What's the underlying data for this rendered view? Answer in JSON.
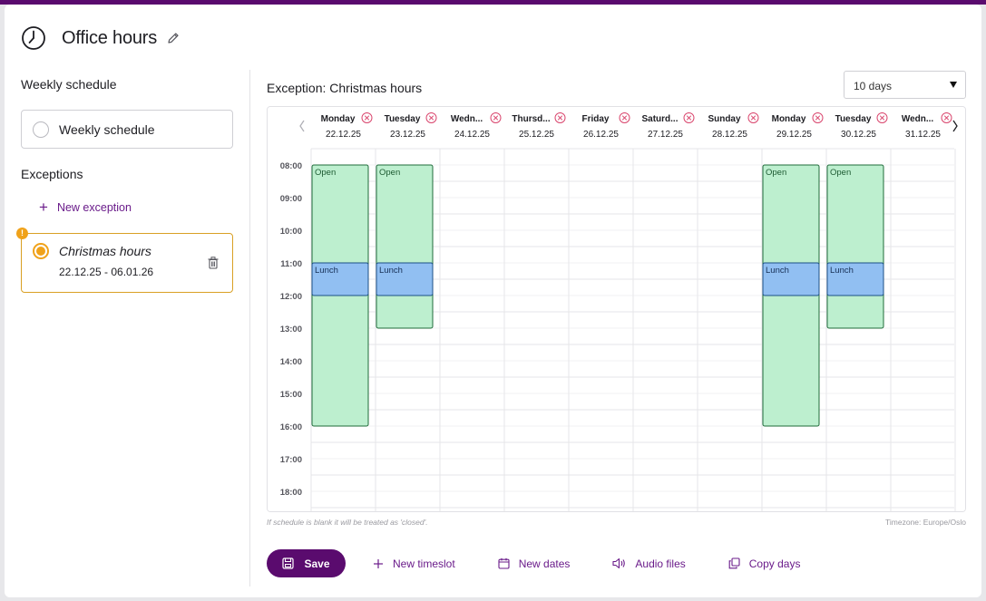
{
  "header": {
    "title": "Office hours"
  },
  "weekly": {
    "section_title": "Weekly schedule",
    "option_label": "Weekly schedule"
  },
  "exceptions": {
    "section_title": "Exceptions",
    "new_label": "New exception",
    "items": [
      {
        "name": "Christmas hours",
        "dates": "22.12.25 - 06.01.26",
        "warning": "!"
      }
    ]
  },
  "main": {
    "heading": "Exception: Christmas hours",
    "range_select": {
      "value": "10 days"
    },
    "footnote": "If schedule is blank it will be treated as 'closed'.",
    "timezone": "Timezone: Europe/Oslo"
  },
  "calendar": {
    "days": [
      {
        "name": "Monday",
        "date": "22.12.25"
      },
      {
        "name": "Tuesday",
        "date": "23.12.25"
      },
      {
        "name": "Wedn...",
        "date": "24.12.25"
      },
      {
        "name": "Thursd...",
        "date": "25.12.25"
      },
      {
        "name": "Friday",
        "date": "26.12.25"
      },
      {
        "name": "Saturd...",
        "date": "27.12.25"
      },
      {
        "name": "Sunday",
        "date": "28.12.25"
      },
      {
        "name": "Monday",
        "date": "29.12.25"
      },
      {
        "name": "Tuesday",
        "date": "30.12.25"
      },
      {
        "name": "Wedn...",
        "date": "31.12.25"
      }
    ],
    "hours": [
      "08:00",
      "09:00",
      "10:00",
      "11:00",
      "12:00",
      "13:00",
      "14:00",
      "15:00",
      "16:00",
      "17:00",
      "18:00"
    ],
    "events": [
      {
        "day": 0,
        "label": "Open",
        "start": 8,
        "end": 16,
        "kind": "open"
      },
      {
        "day": 0,
        "label": "Lunch",
        "start": 11,
        "end": 12,
        "kind": "lunch"
      },
      {
        "day": 1,
        "label": "Open",
        "start": 8,
        "end": 13,
        "kind": "open"
      },
      {
        "day": 1,
        "label": "Lunch",
        "start": 11,
        "end": 12,
        "kind": "lunch"
      },
      {
        "day": 7,
        "label": "Open",
        "start": 8,
        "end": 16,
        "kind": "open"
      },
      {
        "day": 7,
        "label": "Lunch",
        "start": 11,
        "end": 12,
        "kind": "lunch"
      },
      {
        "day": 8,
        "label": "Open",
        "start": 8,
        "end": 13,
        "kind": "open"
      },
      {
        "day": 8,
        "label": "Lunch",
        "start": 11,
        "end": 12,
        "kind": "lunch"
      }
    ]
  },
  "actions": {
    "save": "Save",
    "new_timeslot": "New timeslot",
    "new_dates": "New dates",
    "audio_files": "Audio files",
    "copy_days": "Copy days"
  },
  "colors": {
    "brand": "#5a0b6e",
    "link": "#6a1b8a",
    "warning": "#f0a21a",
    "open_fill": "#bdefcf",
    "open_stroke": "#1f6b3a",
    "lunch_fill": "#91bff2",
    "lunch_stroke": "#1b4f86",
    "remove_icon": "#d9446c"
  }
}
